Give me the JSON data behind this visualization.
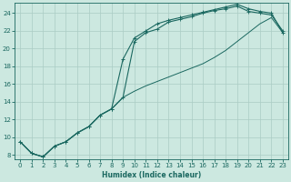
{
  "xlabel": "Humidex (Indice chaleur)",
  "bg_color": "#cce8e0",
  "grid_color": "#aaccc4",
  "line_color": "#1a6860",
  "xlim": [
    -0.5,
    23.5
  ],
  "ylim": [
    7.5,
    25.2
  ],
  "xticks": [
    0,
    1,
    2,
    3,
    4,
    5,
    6,
    7,
    8,
    9,
    10,
    11,
    12,
    13,
    14,
    15,
    16,
    17,
    18,
    19,
    20,
    21,
    22,
    23
  ],
  "yticks": [
    8,
    10,
    12,
    14,
    16,
    18,
    20,
    22,
    24
  ],
  "line1_x": [
    0,
    1,
    2,
    3,
    4,
    5,
    6,
    7,
    8,
    9,
    10,
    11,
    12,
    13,
    14,
    15,
    16,
    17,
    18,
    19,
    20,
    21,
    22,
    23
  ],
  "line1_y": [
    9.5,
    8.2,
    7.8,
    9.0,
    9.5,
    10.5,
    11.2,
    12.5,
    13.2,
    14.5,
    20.8,
    21.8,
    22.2,
    23.0,
    23.3,
    23.6,
    24.0,
    24.3,
    24.5,
    24.8,
    24.2,
    24.0,
    23.8,
    22.0
  ],
  "line2_x": [
    0,
    1,
    2,
    3,
    4,
    5,
    6,
    7,
    8,
    9,
    10,
    11,
    12,
    13,
    14,
    15,
    16,
    17,
    18,
    19,
    20,
    21,
    22,
    23
  ],
  "line2_y": [
    9.5,
    8.2,
    7.8,
    9.0,
    9.5,
    10.5,
    11.2,
    12.5,
    13.2,
    18.8,
    21.2,
    22.0,
    22.8,
    23.2,
    23.5,
    23.8,
    24.1,
    24.4,
    24.7,
    25.0,
    24.5,
    24.2,
    24.0,
    21.8
  ],
  "line3_x": [
    0,
    1,
    2,
    3,
    4,
    5,
    6,
    7,
    8,
    9,
    10,
    11,
    12,
    13,
    14,
    15,
    16,
    17,
    18,
    19,
    20,
    21,
    22,
    23
  ],
  "line3_y": [
    9.5,
    8.2,
    7.8,
    9.0,
    9.5,
    10.5,
    11.2,
    12.5,
    13.2,
    14.5,
    15.2,
    15.8,
    16.3,
    16.8,
    17.3,
    17.8,
    18.3,
    19.0,
    19.8,
    20.8,
    21.8,
    22.8,
    23.5,
    21.8
  ]
}
